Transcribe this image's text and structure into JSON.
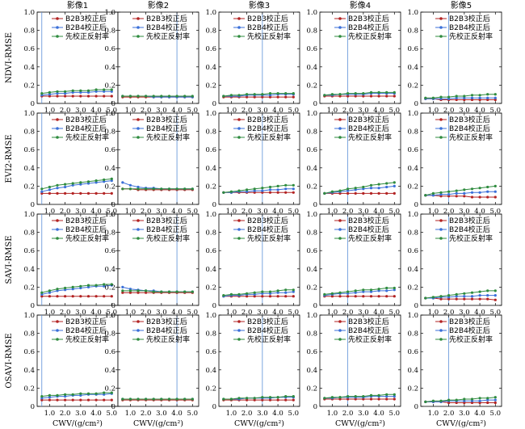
{
  "chart_data": {
    "type": "line",
    "columns": [
      "影像1",
      "影像2",
      "影像3",
      "影像4",
      "影像5"
    ],
    "rows": [
      "NDVI-RMSE",
      "EVI2-RMSE",
      "SAVI-RMSE",
      "OSAVI-RMSE"
    ],
    "xlabel": "CWV/(g/cm²)",
    "xlim": [
      0.2,
      5.4
    ],
    "ylim": [
      0,
      1.0
    ],
    "x_ticks": [
      "1.0",
      "2.0",
      "3.0",
      "4.0",
      "5.0"
    ],
    "y_ticks": [
      "0",
      "0.2",
      "0.4",
      "0.6",
      "0.8",
      "1.0"
    ],
    "x": [
      0.5,
      1.0,
      1.5,
      2.0,
      2.5,
      3.0,
      3.5,
      4.0,
      4.5,
      5.0
    ],
    "legend": [
      "B2B3校正后",
      "B2B4校正后",
      "先校正反射率"
    ],
    "colors": {
      "b2b3": "#b22222",
      "b2b4": "#3a6fd8",
      "first": "#2e8b3e",
      "vline": "#5b8fd6"
    },
    "vlines": [
      0.5,
      4.0,
      3.0,
      2.0,
      2.0
    ],
    "panels": [
      [
        {
          "b2b3": [
            0.08,
            0.08,
            0.08,
            0.08,
            0.08,
            0.08,
            0.08,
            0.08,
            0.08,
            0.08
          ],
          "b2b4": [
            0.09,
            0.1,
            0.11,
            0.11,
            0.12,
            0.12,
            0.12,
            0.13,
            0.13,
            0.13
          ],
          "first": [
            0.11,
            0.12,
            0.13,
            0.13,
            0.14,
            0.14,
            0.14,
            0.15,
            0.15,
            0.15
          ]
        },
        {
          "b2b3": [
            0.07,
            0.07,
            0.07,
            0.07,
            0.07,
            0.07,
            0.07,
            0.07,
            0.07,
            0.07
          ],
          "b2b4": [
            0.08,
            0.08,
            0.08,
            0.08,
            0.07,
            0.07,
            0.07,
            0.07,
            0.07,
            0.07
          ],
          "first": [
            0.08,
            0.08,
            0.08,
            0.08,
            0.08,
            0.08,
            0.08,
            0.08,
            0.08,
            0.08
          ]
        },
        {
          "b2b3": [
            0.07,
            0.07,
            0.07,
            0.07,
            0.07,
            0.07,
            0.07,
            0.07,
            0.07,
            0.07
          ],
          "b2b4": [
            0.08,
            0.08,
            0.08,
            0.09,
            0.09,
            0.09,
            0.09,
            0.1,
            0.1,
            0.1
          ],
          "first": [
            0.08,
            0.09,
            0.09,
            0.1,
            0.1,
            0.1,
            0.11,
            0.11,
            0.11,
            0.11
          ]
        },
        {
          "b2b3": [
            0.08,
            0.08,
            0.08,
            0.08,
            0.08,
            0.08,
            0.08,
            0.08,
            0.08,
            0.08
          ],
          "b2b4": [
            0.09,
            0.09,
            0.1,
            0.1,
            0.1,
            0.1,
            0.11,
            0.11,
            0.11,
            0.11
          ],
          "first": [
            0.09,
            0.1,
            0.1,
            0.11,
            0.11,
            0.11,
            0.12,
            0.12,
            0.12,
            0.12
          ]
        },
        {
          "b2b3": [
            0.05,
            0.05,
            0.04,
            0.04,
            0.04,
            0.04,
            0.04,
            0.04,
            0.04,
            0.04
          ],
          "b2b4": [
            0.05,
            0.05,
            0.05,
            0.05,
            0.06,
            0.06,
            0.06,
            0.06,
            0.06,
            0.06
          ],
          "first": [
            0.06,
            0.06,
            0.07,
            0.07,
            0.08,
            0.08,
            0.09,
            0.09,
            0.1,
            0.1
          ]
        }
      ],
      [
        {
          "b2b3": [
            0.12,
            0.12,
            0.12,
            0.12,
            0.12,
            0.12,
            0.12,
            0.12,
            0.12,
            0.12
          ],
          "b2b4": [
            0.14,
            0.16,
            0.18,
            0.19,
            0.21,
            0.22,
            0.23,
            0.24,
            0.25,
            0.26
          ],
          "first": [
            0.17,
            0.19,
            0.21,
            0.22,
            0.23,
            0.24,
            0.25,
            0.26,
            0.27,
            0.28
          ]
        },
        {
          "b2b3": [
            0.17,
            0.17,
            0.16,
            0.16,
            0.16,
            0.16,
            0.16,
            0.16,
            0.16,
            0.16
          ],
          "b2b4": [
            0.24,
            0.21,
            0.19,
            0.18,
            0.18,
            0.17,
            0.17,
            0.17,
            0.17,
            0.17
          ],
          "first": [
            0.17,
            0.17,
            0.17,
            0.17,
            0.17,
            0.17,
            0.17,
            0.17,
            0.17,
            0.17
          ]
        },
        {
          "b2b3": [
            0.13,
            0.13,
            0.13,
            0.13,
            0.13,
            0.13,
            0.13,
            0.13,
            0.13,
            0.13
          ],
          "b2b4": [
            0.13,
            0.13,
            0.14,
            0.14,
            0.15,
            0.15,
            0.16,
            0.16,
            0.17,
            0.17
          ],
          "first": [
            0.13,
            0.14,
            0.15,
            0.16,
            0.17,
            0.18,
            0.19,
            0.2,
            0.21,
            0.21
          ]
        },
        {
          "b2b3": [
            0.12,
            0.12,
            0.12,
            0.12,
            0.12,
            0.12,
            0.12,
            0.12,
            0.12,
            0.12
          ],
          "b2b4": [
            0.12,
            0.13,
            0.14,
            0.15,
            0.16,
            0.17,
            0.18,
            0.18,
            0.19,
            0.2
          ],
          "first": [
            0.12,
            0.14,
            0.15,
            0.17,
            0.18,
            0.19,
            0.21,
            0.22,
            0.23,
            0.24
          ]
        },
        {
          "b2b3": [
            0.1,
            0.1,
            0.09,
            0.09,
            0.09,
            0.09,
            0.08,
            0.08,
            0.08,
            0.08
          ],
          "b2b4": [
            0.1,
            0.1,
            0.11,
            0.11,
            0.12,
            0.12,
            0.13,
            0.13,
            0.14,
            0.14
          ],
          "first": [
            0.1,
            0.12,
            0.13,
            0.14,
            0.15,
            0.16,
            0.17,
            0.18,
            0.19,
            0.2
          ]
        }
      ],
      [
        {
          "b2b3": [
            0.1,
            0.1,
            0.1,
            0.1,
            0.1,
            0.1,
            0.1,
            0.1,
            0.1,
            0.1
          ],
          "b2b4": [
            0.12,
            0.14,
            0.16,
            0.17,
            0.18,
            0.19,
            0.2,
            0.21,
            0.21,
            0.22
          ],
          "first": [
            0.14,
            0.16,
            0.18,
            0.19,
            0.2,
            0.21,
            0.22,
            0.22,
            0.23,
            0.23
          ]
        },
        {
          "b2b3": [
            0.14,
            0.14,
            0.14,
            0.14,
            0.14,
            0.14,
            0.14,
            0.14,
            0.14,
            0.14
          ],
          "b2b4": [
            0.2,
            0.18,
            0.17,
            0.16,
            0.16,
            0.15,
            0.15,
            0.15,
            0.15,
            0.15
          ],
          "first": [
            0.16,
            0.16,
            0.16,
            0.16,
            0.15,
            0.15,
            0.15,
            0.15,
            0.15,
            0.15
          ]
        },
        {
          "b2b3": [
            0.1,
            0.1,
            0.1,
            0.1,
            0.1,
            0.1,
            0.1,
            0.1,
            0.1,
            0.1
          ],
          "b2b4": [
            0.1,
            0.11,
            0.11,
            0.12,
            0.12,
            0.13,
            0.13,
            0.14,
            0.14,
            0.15
          ],
          "first": [
            0.11,
            0.12,
            0.12,
            0.13,
            0.14,
            0.15,
            0.15,
            0.16,
            0.17,
            0.17
          ]
        },
        {
          "b2b3": [
            0.1,
            0.1,
            0.1,
            0.1,
            0.1,
            0.1,
            0.1,
            0.1,
            0.1,
            0.1
          ],
          "b2b4": [
            0.11,
            0.12,
            0.13,
            0.13,
            0.14,
            0.15,
            0.15,
            0.16,
            0.16,
            0.17
          ],
          "first": [
            0.12,
            0.13,
            0.14,
            0.15,
            0.16,
            0.17,
            0.17,
            0.18,
            0.19,
            0.19
          ]
        },
        {
          "b2b3": [
            0.08,
            0.08,
            0.07,
            0.07,
            0.07,
            0.07,
            0.07,
            0.07,
            0.07,
            0.06
          ],
          "b2b4": [
            0.08,
            0.08,
            0.09,
            0.09,
            0.1,
            0.1,
            0.1,
            0.11,
            0.11,
            0.11
          ],
          "first": [
            0.08,
            0.09,
            0.1,
            0.11,
            0.12,
            0.13,
            0.14,
            0.15,
            0.16,
            0.16
          ]
        }
      ],
      [
        {
          "b2b3": [
            0.07,
            0.07,
            0.07,
            0.07,
            0.07,
            0.07,
            0.07,
            0.07,
            0.07,
            0.07
          ],
          "b2b4": [
            0.09,
            0.1,
            0.11,
            0.11,
            0.12,
            0.12,
            0.13,
            0.13,
            0.13,
            0.14
          ],
          "first": [
            0.11,
            0.12,
            0.12,
            0.13,
            0.13,
            0.14,
            0.14,
            0.14,
            0.15,
            0.15
          ]
        },
        {
          "b2b3": [
            0.07,
            0.07,
            0.07,
            0.07,
            0.07,
            0.07,
            0.07,
            0.07,
            0.07,
            0.07
          ],
          "b2b4": [
            0.08,
            0.08,
            0.08,
            0.08,
            0.08,
            0.08,
            0.08,
            0.08,
            0.08,
            0.08
          ],
          "first": [
            0.08,
            0.08,
            0.08,
            0.08,
            0.08,
            0.08,
            0.08,
            0.08,
            0.08,
            0.08
          ]
        },
        {
          "b2b3": [
            0.07,
            0.07,
            0.07,
            0.07,
            0.07,
            0.07,
            0.07,
            0.07,
            0.07,
            0.07
          ],
          "b2b4": [
            0.08,
            0.08,
            0.08,
            0.09,
            0.09,
            0.09,
            0.09,
            0.1,
            0.1,
            0.1
          ],
          "first": [
            0.08,
            0.08,
            0.09,
            0.09,
            0.09,
            0.1,
            0.1,
            0.1,
            0.11,
            0.11
          ]
        },
        {
          "b2b3": [
            0.08,
            0.08,
            0.08,
            0.08,
            0.08,
            0.08,
            0.08,
            0.08,
            0.08,
            0.08
          ],
          "b2b4": [
            0.09,
            0.09,
            0.1,
            0.1,
            0.1,
            0.1,
            0.11,
            0.11,
            0.11,
            0.11
          ],
          "first": [
            0.09,
            0.1,
            0.1,
            0.11,
            0.11,
            0.11,
            0.12,
            0.12,
            0.13,
            0.13
          ]
        },
        {
          "b2b3": [
            0.05,
            0.05,
            0.05,
            0.04,
            0.04,
            0.04,
            0.04,
            0.04,
            0.04,
            0.04
          ],
          "b2b4": [
            0.05,
            0.05,
            0.05,
            0.06,
            0.06,
            0.06,
            0.06,
            0.06,
            0.07,
            0.07
          ],
          "first": [
            0.05,
            0.06,
            0.06,
            0.07,
            0.07,
            0.08,
            0.08,
            0.09,
            0.09,
            0.1
          ]
        }
      ]
    ]
  }
}
